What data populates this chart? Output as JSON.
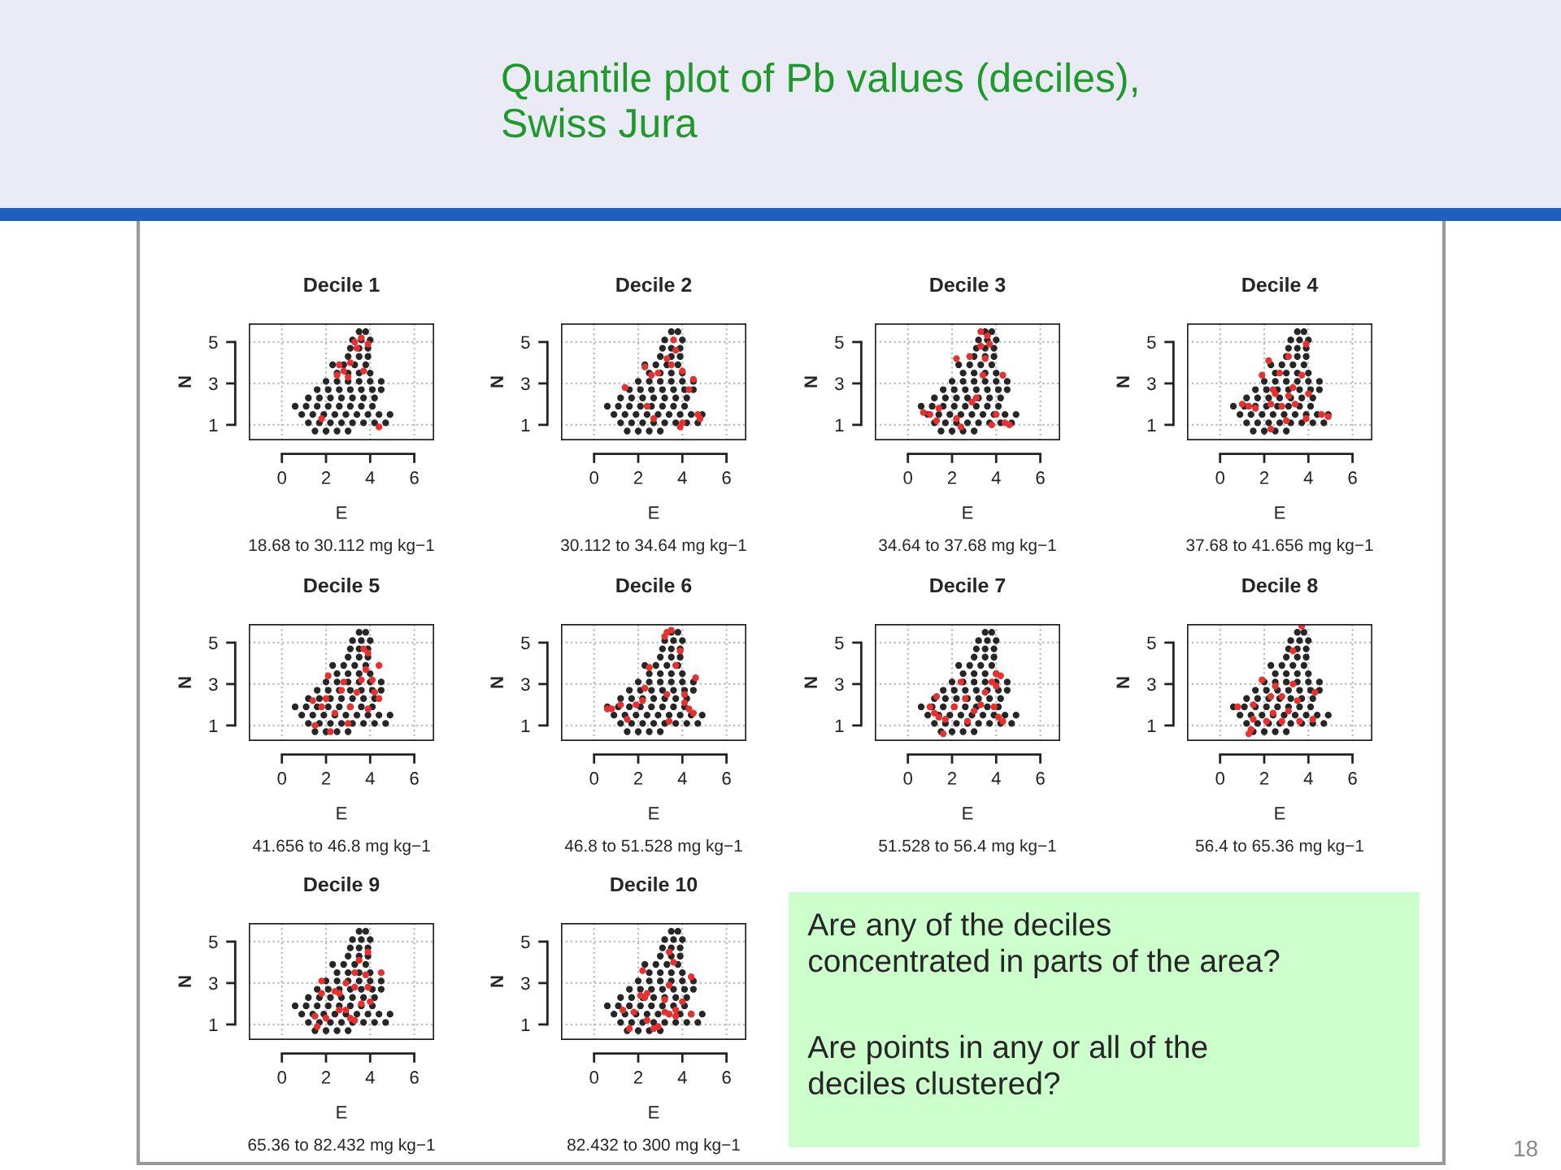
{
  "chart_data": [
    {
      "type": "other",
      "title": "Quantile plot of Pb values (deciles),\nSwiss Jura",
      "annotations": [
        "18"
      ]
    },
    {
      "type": "scatter",
      "title": "Decile 1",
      "xlabel": "E",
      "ylabel": "N",
      "annotations": [
        "18.68 to 30.112 mg kg−1"
      ],
      "xlim": [
        -1.5,
        6.9
      ],
      "ylim": [
        0.25,
        5.9
      ],
      "xticks": [
        0,
        2,
        4,
        6
      ],
      "yticks": [
        1,
        3,
        5
      ],
      "grid": true,
      "marker": "circle",
      "series": [
        {
          "color": "#262626",
          "x": [
            1.5,
            2.0,
            2.5,
            3.0,
            1.2,
            1.7,
            2.2,
            2.7,
            3.2,
            3.7,
            4.2,
            4.7,
            0.9,
            1.4,
            1.9,
            2.4,
            2.9,
            3.4,
            3.9,
            4.4,
            4.9,
            0.6,
            1.1,
            1.6,
            2.1,
            2.6,
            3.1,
            3.6,
            4.1,
            1.2,
            1.7,
            2.2,
            2.7,
            3.2,
            3.7,
            4.2,
            1.6,
            2.1,
            2.6,
            3.1,
            3.6,
            4.1,
            4.5,
            2.0,
            2.5,
            3.0,
            3.5,
            4.0,
            4.5,
            2.5,
            3.0,
            3.5,
            4.0,
            2.3,
            2.8,
            3.3,
            3.8,
            3.0,
            3.5,
            3.9,
            3.1,
            3.5,
            3.9,
            3.2,
            3.6,
            4.0,
            3.5,
            3.8
          ],
          "values": [
            0.7,
            0.7,
            0.7,
            0.7,
            1.1,
            1.1,
            1.1,
            1.1,
            1.1,
            1.1,
            1.1,
            1.1,
            1.5,
            1.5,
            1.5,
            1.5,
            1.5,
            1.5,
            1.5,
            1.5,
            1.5,
            1.9,
            1.9,
            1.9,
            1.9,
            1.9,
            1.9,
            1.9,
            1.9,
            2.3,
            2.3,
            2.3,
            2.3,
            2.3,
            2.3,
            2.3,
            2.7,
            2.7,
            2.7,
            2.7,
            2.7,
            2.7,
            2.7,
            3.1,
            3.1,
            3.1,
            3.1,
            3.1,
            3.1,
            3.5,
            3.5,
            3.5,
            3.5,
            3.9,
            3.9,
            3.9,
            3.9,
            4.3,
            4.3,
            4.3,
            4.7,
            4.7,
            4.7,
            5.1,
            5.1,
            5.1,
            5.5,
            5.5
          ]
        },
        {
          "color": "#e8312f",
          "x": [
            3.3,
            3.6,
            3.9,
            3.4,
            2.6,
            2.8,
            3.0,
            2.5,
            3.1,
            3.7,
            4.4,
            1.8
          ],
          "values": [
            5.0,
            5.2,
            4.9,
            4.7,
            3.9,
            3.6,
            3.3,
            3.4,
            4.0,
            3.6,
            0.9,
            1.3
          ]
        }
      ]
    },
    {
      "type": "scatter",
      "title": "Decile 2",
      "xlabel": "E",
      "ylabel": "N",
      "annotations": [
        "30.112 to 34.64 mg kg−1"
      ],
      "xlim": [
        -1.5,
        6.9
      ],
      "ylim": [
        0.25,
        5.9
      ],
      "xticks": [
        0,
        2,
        4,
        6
      ],
      "yticks": [
        1,
        3,
        5
      ],
      "grid": true,
      "marker": "circle",
      "series": [
        {
          "color": "#262626",
          "x": [
            1.5,
            2.0,
            2.5,
            3.0,
            1.2,
            1.7,
            2.2,
            2.7,
            3.2,
            3.7,
            4.2,
            4.7,
            0.9,
            1.4,
            1.9,
            2.4,
            2.9,
            3.4,
            3.9,
            4.4,
            4.9,
            0.6,
            1.1,
            1.6,
            2.1,
            2.6,
            3.1,
            3.6,
            4.1,
            1.2,
            1.7,
            2.2,
            2.7,
            3.2,
            3.7,
            4.2,
            1.6,
            2.1,
            2.6,
            3.1,
            3.6,
            4.1,
            4.5,
            2.0,
            2.5,
            3.0,
            3.5,
            4.0,
            4.5,
            2.5,
            3.0,
            3.5,
            4.0,
            2.3,
            2.8,
            3.3,
            3.8,
            3.0,
            3.5,
            3.9,
            3.1,
            3.5,
            3.9,
            3.2,
            3.6,
            4.0,
            3.5,
            3.8
          ],
          "values": [
            0.7,
            0.7,
            0.7,
            0.7,
            1.1,
            1.1,
            1.1,
            1.1,
            1.1,
            1.1,
            1.1,
            1.1,
            1.5,
            1.5,
            1.5,
            1.5,
            1.5,
            1.5,
            1.5,
            1.5,
            1.5,
            1.9,
            1.9,
            1.9,
            1.9,
            1.9,
            1.9,
            1.9,
            1.9,
            2.3,
            2.3,
            2.3,
            2.3,
            2.3,
            2.3,
            2.3,
            2.7,
            2.7,
            2.7,
            2.7,
            2.7,
            2.7,
            2.7,
            3.1,
            3.1,
            3.1,
            3.1,
            3.1,
            3.1,
            3.5,
            3.5,
            3.5,
            3.5,
            3.9,
            3.9,
            3.9,
            3.9,
            4.3,
            4.3,
            4.3,
            4.7,
            4.7,
            4.7,
            5.1,
            null,
            5.1,
            5.5,
            5.5
          ]
        },
        {
          "color": "#e8312f",
          "x": [
            3.6,
            3.7,
            3.3,
            2.3,
            2.6,
            2.9,
            3.5,
            4.0,
            4.5,
            1.4,
            4.3,
            2.4,
            4.0,
            3.9,
            4.7,
            4.8,
            2.7
          ],
          "values": [
            5.1,
            4.6,
            4.2,
            3.8,
            3.4,
            3.5,
            3.9,
            3.6,
            3.2,
            2.8,
            2.7,
            1.9,
            1.1,
            0.9,
            1.5,
            1.3,
            1.3
          ]
        }
      ]
    },
    {
      "type": "scatter",
      "title": "Decile 3",
      "xlabel": "E",
      "ylabel": "N",
      "annotations": [
        "34.64 to 37.68 mg kg−1"
      ],
      "xlim": [
        -1.5,
        6.9
      ],
      "ylim": [
        0.25,
        5.9
      ],
      "xticks": [
        0,
        2,
        4,
        6
      ],
      "yticks": [
        1,
        3,
        5
      ],
      "grid": true,
      "marker": "circle",
      "series": [
        {
          "color": "#262626",
          "x": [
            1.5,
            2.0,
            2.5,
            3.0,
            1.2,
            1.7,
            2.2,
            2.7,
            3.2,
            3.7,
            4.2,
            4.7,
            0.9,
            1.4,
            1.9,
            2.4,
            2.9,
            3.4,
            3.9,
            4.4,
            4.9,
            0.6,
            1.1,
            1.6,
            2.1,
            2.6,
            3.1,
            3.6,
            4.1,
            1.2,
            1.7,
            2.2,
            2.7,
            3.2,
            3.7,
            4.2,
            1.6,
            2.1,
            2.6,
            3.1,
            3.6,
            4.1,
            4.5,
            2.0,
            2.5,
            3.0,
            3.5,
            4.0,
            4.5,
            2.5,
            3.0,
            3.5,
            4.0,
            2.3,
            2.8,
            3.3,
            3.8,
            3.0,
            3.5,
            3.9,
            3.1,
            3.5,
            3.9,
            3.2,
            3.6,
            4.0,
            3.5,
            3.8
          ],
          "values": [
            0.7,
            0.7,
            0.7,
            0.7,
            1.1,
            1.1,
            1.1,
            1.1,
            1.1,
            1.1,
            1.1,
            1.1,
            1.5,
            1.5,
            1.5,
            1.5,
            1.5,
            1.5,
            1.5,
            1.5,
            1.5,
            1.9,
            1.9,
            1.9,
            1.9,
            1.9,
            1.9,
            1.9,
            1.9,
            2.3,
            2.3,
            2.3,
            2.3,
            2.3,
            2.3,
            2.3,
            2.7,
            2.7,
            2.7,
            2.7,
            2.7,
            2.7,
            2.7,
            3.1,
            3.1,
            3.1,
            3.1,
            3.1,
            3.1,
            3.5,
            3.5,
            3.5,
            3.5,
            3.9,
            3.9,
            3.9,
            3.9,
            4.3,
            4.3,
            4.3,
            4.7,
            4.7,
            4.7,
            5.1,
            5.1,
            5.1,
            5.5,
            5.5
          ]
        },
        {
          "color": "#e8312f",
          "x": [
            3.3,
            3.6,
            3.7,
            3.3,
            3.5,
            2.2,
            2.8,
            3.4,
            4.3,
            3.1,
            2.9,
            0.7,
            1.0,
            1.4,
            1.3,
            2.2,
            2.4,
            3.8,
            4.4,
            4.6,
            4.0
          ],
          "values": [
            5.5,
            5.3,
            4.9,
            4.8,
            4.2,
            4.2,
            4.3,
            3.4,
            3.4,
            2.3,
            2.1,
            1.6,
            1.5,
            1.8,
            1.2,
            1.3,
            0.9,
            1.0,
            1.1,
            1.0,
            1.5
          ]
        }
      ]
    },
    {
      "type": "scatter",
      "title": "Decile 4",
      "xlabel": "E",
      "ylabel": "N",
      "annotations": [
        "37.68 to 41.656 mg kg−1"
      ],
      "xlim": [
        -1.5,
        6.9
      ],
      "ylim": [
        0.25,
        5.9
      ],
      "xticks": [
        0,
        2,
        4,
        6
      ],
      "yticks": [
        1,
        3,
        5
      ],
      "grid": true,
      "marker": "circle",
      "series": [
        {
          "color": "#262626",
          "x": [
            1.5,
            2.0,
            2.5,
            3.0,
            1.2,
            1.7,
            2.2,
            2.7,
            3.2,
            3.7,
            4.2,
            4.7,
            0.9,
            1.4,
            1.9,
            2.4,
            2.9,
            3.4,
            3.9,
            4.4,
            4.9,
            0.6,
            1.1,
            1.6,
            2.1,
            2.6,
            3.1,
            3.6,
            4.1,
            1.2,
            1.7,
            2.2,
            2.7,
            3.2,
            3.7,
            4.2,
            1.6,
            2.1,
            2.6,
            3.1,
            3.6,
            4.1,
            4.5,
            2.0,
            2.5,
            3.0,
            3.5,
            4.0,
            4.5,
            2.5,
            3.0,
            3.5,
            4.0,
            2.3,
            2.8,
            3.3,
            3.8,
            3.0,
            3.5,
            3.9,
            3.1,
            3.5,
            3.9,
            3.2,
            3.6,
            4.0,
            3.5,
            3.8
          ],
          "values": [
            0.7,
            0.7,
            0.7,
            0.7,
            1.1,
            1.1,
            1.1,
            1.1,
            1.1,
            1.1,
            1.1,
            1.1,
            1.5,
            1.5,
            1.5,
            1.5,
            1.5,
            1.5,
            1.5,
            1.5,
            1.5,
            1.9,
            1.9,
            1.9,
            1.9,
            1.9,
            1.9,
            1.9,
            1.9,
            2.3,
            2.3,
            2.3,
            2.3,
            2.3,
            2.3,
            2.3,
            2.7,
            2.7,
            2.7,
            2.7,
            2.7,
            2.7,
            2.7,
            3.1,
            3.1,
            3.1,
            3.1,
            3.1,
            3.1,
            3.5,
            3.5,
            3.5,
            3.5,
            3.9,
            3.9,
            3.9,
            3.9,
            4.3,
            4.3,
            4.3,
            4.7,
            4.7,
            4.7,
            5.1,
            5.1,
            5.1,
            5.5,
            5.5
          ]
        },
        {
          "color": "#e8312f",
          "x": [
            3.1,
            3.9,
            2.2,
            1.9,
            2.7,
            3.7,
            3.3,
            2.4,
            2.5,
            3.1,
            2.3,
            1.0,
            1.3,
            1.6,
            2.8,
            3.4,
            4.0,
            4.6,
            4.9,
            3.0,
            3.9,
            2.3
          ],
          "values": [
            4.3,
            4.9,
            4.1,
            3.4,
            3.5,
            3.4,
            2.8,
            2.7,
            2.5,
            2.4,
            2.0,
            2.0,
            1.9,
            1.8,
            1.9,
            2.0,
            2.5,
            1.5,
            1.4,
            1.2,
            1.3,
            0.8
          ]
        }
      ]
    },
    {
      "type": "scatter",
      "title": "Decile 5",
      "xlabel": "E",
      "ylabel": "N",
      "annotations": [
        "41.656 to 46.8 mg kg−1"
      ],
      "xlim": [
        -1.5,
        6.9
      ],
      "ylim": [
        0.25,
        5.9
      ],
      "xticks": [
        0,
        2,
        4,
        6
      ],
      "yticks": [
        1,
        3,
        5
      ],
      "grid": true,
      "marker": "circle",
      "series": [
        {
          "color": "#262626",
          "x": [
            1.5,
            2.0,
            2.5,
            3.0,
            1.2,
            1.7,
            2.2,
            2.7,
            3.2,
            3.7,
            4.2,
            4.7,
            0.9,
            1.4,
            1.9,
            2.4,
            2.9,
            3.4,
            3.9,
            4.4,
            4.9,
            0.6,
            1.1,
            1.6,
            2.1,
            2.6,
            3.1,
            3.6,
            4.1,
            1.2,
            1.7,
            2.2,
            2.7,
            3.2,
            3.7,
            4.2,
            1.6,
            2.1,
            2.6,
            3.1,
            3.6,
            4.1,
            4.5,
            2.0,
            2.5,
            3.0,
            3.5,
            4.0,
            4.5,
            2.5,
            3.0,
            3.5,
            4.0,
            2.3,
            2.8,
            3.3,
            3.8,
            3.0,
            3.5,
            3.9,
            3.1,
            3.5,
            3.9,
            3.2,
            3.6,
            4.0,
            3.5,
            3.8
          ],
          "values": [
            0.7,
            0.7,
            0.7,
            0.7,
            1.1,
            1.1,
            1.1,
            1.1,
            1.1,
            1.1,
            1.1,
            1.1,
            1.5,
            1.5,
            1.5,
            1.5,
            1.5,
            1.5,
            1.5,
            1.5,
            1.5,
            1.9,
            1.9,
            1.9,
            1.9,
            1.9,
            1.9,
            1.9,
            1.9,
            2.3,
            2.3,
            2.3,
            2.3,
            2.3,
            2.3,
            2.3,
            2.7,
            2.7,
            2.7,
            2.7,
            2.7,
            2.7,
            2.7,
            3.1,
            3.1,
            3.1,
            3.1,
            3.1,
            3.1,
            3.5,
            3.5,
            3.5,
            3.5,
            3.9,
            3.9,
            3.9,
            3.9,
            4.3,
            4.3,
            4.3,
            4.7,
            4.7,
            4.7,
            5.1,
            5.1,
            5.1,
            5.5,
            5.5
          ]
        },
        {
          "color": "#e8312f",
          "x": [
            3.7,
            3.9,
            4.4,
            3.8,
            2.1,
            2.8,
            3.6,
            4.1,
            1.4,
            2.0,
            2.7,
            3.4,
            4.2,
            4.4,
            1.8,
            3.1,
            3.9,
            2.4,
            1.5,
            3.0,
            2.2
          ],
          "values": [
            4.7,
            4.5,
            3.9,
            3.7,
            3.4,
            3.1,
            3.2,
            3.2,
            2.2,
            2.3,
            2.7,
            2.6,
            2.6,
            2.3,
            1.9,
            1.9,
            1.8,
            1.6,
            1.0,
            1.1,
            0.7
          ]
        }
      ]
    },
    {
      "type": "scatter",
      "title": "Decile 6",
      "xlabel": "E",
      "ylabel": "N",
      "annotations": [
        "46.8 to 51.528 mg kg−1"
      ],
      "xlim": [
        -1.5,
        6.9
      ],
      "ylim": [
        0.25,
        5.9
      ],
      "xticks": [
        0,
        2,
        4,
        6
      ],
      "yticks": [
        1,
        3,
        5
      ],
      "grid": true,
      "marker": "circle",
      "series": [
        {
          "color": "#262626",
          "x": [
            1.5,
            2.0,
            2.5,
            3.0,
            1.2,
            1.7,
            2.2,
            2.7,
            3.2,
            3.7,
            4.2,
            4.7,
            0.9,
            1.4,
            1.9,
            2.4,
            2.9,
            3.4,
            3.9,
            4.4,
            4.9,
            0.6,
            1.1,
            1.6,
            2.1,
            2.6,
            3.1,
            3.6,
            4.1,
            1.2,
            1.7,
            2.2,
            2.7,
            3.2,
            3.7,
            4.2,
            1.6,
            2.1,
            2.6,
            3.1,
            3.6,
            4.1,
            4.5,
            2.0,
            2.5,
            3.0,
            3.5,
            4.0,
            4.5,
            2.5,
            3.0,
            3.5,
            4.0,
            2.3,
            2.8,
            3.3,
            3.8,
            3.0,
            3.5,
            3.9,
            3.1,
            3.5,
            3.9,
            3.2,
            3.6,
            4.0,
            3.5,
            3.8
          ],
          "values": [
            0.7,
            0.7,
            0.7,
            0.7,
            1.1,
            1.1,
            1.1,
            1.1,
            1.1,
            1.1,
            1.1,
            1.1,
            1.5,
            1.5,
            1.5,
            1.5,
            1.5,
            1.5,
            1.5,
            1.5,
            1.5,
            1.9,
            1.9,
            1.9,
            1.9,
            1.9,
            1.9,
            1.9,
            1.9,
            2.3,
            2.3,
            2.3,
            2.3,
            2.3,
            2.3,
            2.3,
            2.7,
            2.7,
            2.7,
            2.7,
            2.7,
            2.7,
            2.7,
            3.1,
            3.1,
            3.1,
            3.1,
            3.1,
            3.1,
            3.5,
            3.5,
            3.5,
            3.5,
            3.9,
            3.9,
            3.9,
            3.9,
            4.3,
            4.3,
            4.3,
            4.7,
            4.7,
            4.7,
            5.1,
            5.1,
            5.1,
            5.5,
            5.5
          ]
        },
        {
          "color": "#e8312f",
          "x": [
            3.3,
            3.5,
            3.2,
            3.9,
            2.5,
            3.7,
            4.6,
            2.3,
            3.3,
            4.1,
            0.6,
            0.8,
            1.2,
            1.9,
            2.2,
            4.1,
            4.3,
            4.5,
            3.4,
            1.5
          ],
          "values": [
            5.5,
            5.6,
            5.3,
            4.6,
            3.8,
            3.9,
            3.3,
            2.8,
            2.5,
            2.5,
            1.8,
            1.8,
            2.0,
            2.0,
            2.2,
            2.1,
            1.8,
            1.6,
            1.2,
            1.3
          ]
        }
      ]
    },
    {
      "type": "scatter",
      "title": "Decile 7",
      "xlabel": "E",
      "ylabel": "N",
      "annotations": [
        "51.528 to 56.4 mg kg−1"
      ],
      "xlim": [
        -1.5,
        6.9
      ],
      "ylim": [
        0.25,
        5.9
      ],
      "xticks": [
        0,
        2,
        4,
        6
      ],
      "yticks": [
        1,
        3,
        5
      ],
      "grid": true,
      "marker": "circle",
      "series": [
        {
          "color": "#262626",
          "x": [
            1.5,
            2.0,
            2.5,
            3.0,
            1.2,
            1.7,
            2.2,
            2.7,
            3.2,
            3.7,
            4.2,
            4.7,
            0.9,
            1.4,
            1.9,
            2.4,
            2.9,
            3.4,
            3.9,
            4.4,
            4.9,
            0.6,
            1.1,
            1.6,
            2.1,
            2.6,
            3.1,
            3.6,
            4.1,
            1.2,
            1.7,
            2.2,
            2.7,
            3.2,
            3.7,
            4.2,
            1.6,
            2.1,
            2.6,
            3.1,
            3.6,
            4.1,
            4.5,
            2.0,
            2.5,
            3.0,
            3.5,
            4.0,
            4.5,
            2.5,
            3.0,
            3.5,
            4.0,
            2.3,
            2.8,
            3.3,
            3.8,
            3.0,
            3.5,
            3.9,
            3.1,
            3.5,
            3.9,
            3.2,
            3.6,
            4.0,
            3.5,
            3.8
          ],
          "values": [
            0.7,
            0.7,
            0.7,
            0.7,
            1.1,
            1.1,
            1.1,
            1.1,
            1.1,
            1.1,
            1.1,
            1.1,
            1.5,
            1.5,
            1.5,
            1.5,
            1.5,
            1.5,
            1.5,
            1.5,
            1.5,
            1.9,
            1.9,
            1.9,
            1.9,
            1.9,
            1.9,
            1.9,
            1.9,
            2.3,
            2.3,
            2.3,
            2.3,
            2.3,
            2.3,
            2.3,
            2.7,
            2.7,
            2.7,
            2.7,
            2.7,
            2.7,
            2.7,
            3.1,
            3.1,
            3.1,
            3.1,
            3.1,
            3.1,
            3.5,
            3.5,
            3.5,
            3.5,
            3.9,
            3.9,
            3.9,
            3.9,
            4.3,
            4.3,
            4.3,
            4.7,
            4.7,
            4.7,
            5.1,
            5.1,
            5.1,
            5.5,
            5.5
          ]
        },
        {
          "color": "#e8312f",
          "x": [
            4.0,
            4.2,
            3.8,
            2.4,
            3.5,
            4.0,
            1.3,
            2.1,
            2.6,
            1.0,
            1.2,
            1.4,
            1.7,
            3.0,
            2.7,
            3.9,
            4.1,
            4.3,
            1.6,
            3.3
          ],
          "values": [
            3.5,
            3.4,
            3.1,
            3.1,
            2.6,
            2.9,
            2.4,
            1.9,
            2.3,
            1.9,
            1.6,
            1.4,
            1.3,
            1.7,
            1.2,
            1.9,
            1.4,
            1.2,
            0.6,
            2.0
          ]
        }
      ]
    },
    {
      "type": "scatter",
      "title": "Decile 8",
      "xlabel": "E",
      "ylabel": "N",
      "annotations": [
        "56.4 to 65.36 mg kg−1"
      ],
      "xlim": [
        -1.5,
        6.9
      ],
      "ylim": [
        0.25,
        5.9
      ],
      "xticks": [
        0,
        2,
        4,
        6
      ],
      "yticks": [
        1,
        3,
        5
      ],
      "grid": true,
      "marker": "circle",
      "series": [
        {
          "color": "#262626",
          "x": [
            1.5,
            2.0,
            2.5,
            3.0,
            1.2,
            1.7,
            2.2,
            2.7,
            3.2,
            3.7,
            4.2,
            4.7,
            0.9,
            1.4,
            1.9,
            2.4,
            2.9,
            3.4,
            3.9,
            4.4,
            4.9,
            0.6,
            1.1,
            1.6,
            2.1,
            2.6,
            3.1,
            3.6,
            4.1,
            1.2,
            1.7,
            2.2,
            2.7,
            3.2,
            3.7,
            4.2,
            1.6,
            2.1,
            2.6,
            3.1,
            3.6,
            4.1,
            4.5,
            2.0,
            2.5,
            3.0,
            3.5,
            4.0,
            4.5,
            2.5,
            3.0,
            3.5,
            4.0,
            2.3,
            2.8,
            3.3,
            3.8,
            3.0,
            3.5,
            3.9,
            3.1,
            3.5,
            3.9,
            3.2,
            3.6,
            4.0,
            3.5,
            3.8
          ],
          "values": [
            0.7,
            0.7,
            0.7,
            0.7,
            1.1,
            1.1,
            1.1,
            1.1,
            1.1,
            1.1,
            1.1,
            1.1,
            1.5,
            1.5,
            1.5,
            1.5,
            1.5,
            1.5,
            1.5,
            1.5,
            1.5,
            1.9,
            1.9,
            1.9,
            1.9,
            1.9,
            1.9,
            1.9,
            1.9,
            2.3,
            2.3,
            2.3,
            2.3,
            2.3,
            2.3,
            2.3,
            2.7,
            2.7,
            2.7,
            2.7,
            2.7,
            2.7,
            2.7,
            3.1,
            3.1,
            3.1,
            3.1,
            3.1,
            3.1,
            3.5,
            3.5,
            3.5,
            3.5,
            3.9,
            3.9,
            3.9,
            3.9,
            4.3,
            4.3,
            4.3,
            4.7,
            4.7,
            4.7,
            5.1,
            5.1,
            5.1,
            5.5,
            5.5
          ]
        },
        {
          "color": "#e8312f",
          "x": [
            3.7,
            3.3,
            1.9,
            2.5,
            3.3,
            4.3,
            2.3,
            2.8,
            3.5,
            0.8,
            1.5,
            2.4,
            3.1,
            1.5,
            2.1,
            2.8,
            3.6,
            4.2,
            1.4,
            1.3
          ],
          "values": [
            5.8,
            4.6,
            3.2,
            2.9,
            3.0,
            2.6,
            2.4,
            2.4,
            2.2,
            1.9,
            2.0,
            1.6,
            1.7,
            1.3,
            1.2,
            1.2,
            1.2,
            1.3,
            0.8,
            0.6
          ]
        }
      ]
    },
    {
      "type": "scatter",
      "title": "Decile 9",
      "xlabel": "E",
      "ylabel": "N",
      "annotations": [
        "65.36 to 82.432 mg kg−1"
      ],
      "xlim": [
        -1.5,
        6.9
      ],
      "ylim": [
        0.25,
        5.9
      ],
      "xticks": [
        0,
        2,
        4,
        6
      ],
      "yticks": [
        1,
        3,
        5
      ],
      "grid": true,
      "marker": "circle",
      "series": [
        {
          "color": "#262626",
          "x": [
            1.5,
            2.0,
            2.5,
            3.0,
            1.2,
            1.7,
            2.2,
            2.7,
            3.2,
            3.7,
            4.2,
            4.7,
            0.9,
            1.4,
            1.9,
            2.4,
            2.9,
            3.4,
            3.9,
            4.4,
            4.9,
            0.6,
            1.1,
            1.6,
            2.1,
            2.6,
            3.1,
            3.6,
            4.1,
            1.2,
            1.7,
            2.2,
            2.7,
            3.2,
            3.7,
            4.2,
            1.6,
            2.1,
            2.6,
            3.1,
            3.6,
            4.1,
            4.5,
            2.0,
            2.5,
            3.0,
            3.5,
            4.0,
            4.5,
            2.5,
            3.0,
            3.5,
            4.0,
            2.3,
            2.8,
            3.3,
            3.8,
            3.0,
            3.5,
            3.9,
            3.1,
            3.5,
            3.9,
            3.2,
            3.6,
            4.0,
            3.5,
            3.8
          ],
          "values": [
            0.7,
            0.7,
            0.7,
            0.7,
            1.1,
            1.1,
            1.1,
            1.1,
            1.1,
            1.1,
            1.1,
            1.1,
            1.5,
            1.5,
            1.5,
            1.5,
            1.5,
            1.5,
            1.5,
            1.5,
            1.5,
            1.9,
            1.9,
            1.9,
            1.9,
            1.9,
            1.9,
            1.9,
            1.9,
            2.3,
            2.3,
            2.3,
            2.3,
            2.3,
            2.3,
            2.3,
            2.7,
            2.7,
            2.7,
            2.7,
            2.7,
            2.7,
            2.7,
            3.1,
            3.1,
            3.1,
            3.1,
            3.1,
            3.1,
            3.5,
            3.5,
            3.5,
            3.5,
            3.9,
            3.9,
            3.9,
            3.9,
            4.3,
            4.3,
            4.3,
            4.7,
            4.7,
            4.7,
            5.1,
            5.1,
            5.1,
            5.5,
            5.5
          ]
        },
        {
          "color": "#e8312f",
          "x": [
            3.9,
            3.5,
            4.5,
            3.3,
            3.8,
            2.9,
            3.9,
            1.8,
            1.8,
            2.4,
            2.6,
            3.3,
            2.6,
            2.9,
            3.6,
            4.0,
            1.5,
            3.1,
            3.3,
            2.0,
            1.6
          ],
          "values": [
            4.5,
            4.1,
            3.5,
            3.5,
            3.4,
            3.0,
            2.8,
            3.1,
            2.5,
            2.6,
            2.5,
            2.8,
            1.7,
            1.7,
            2.0,
            2.1,
            1.4,
            1.3,
            1.2,
            1.3,
            0.9
          ]
        }
      ]
    },
    {
      "type": "scatter",
      "title": "Decile 10",
      "xlabel": "E",
      "ylabel": "N",
      "annotations": [
        "82.432 to 300 mg kg−1"
      ],
      "xlim": [
        -1.5,
        6.9
      ],
      "ylim": [
        0.25,
        5.9
      ],
      "xticks": [
        0,
        2,
        4,
        6
      ],
      "yticks": [
        1,
        3,
        5
      ],
      "grid": true,
      "marker": "circle",
      "series": [
        {
          "color": "#262626",
          "x": [
            1.5,
            2.0,
            2.5,
            3.0,
            1.2,
            1.7,
            2.2,
            2.7,
            3.2,
            3.7,
            4.2,
            4.7,
            0.9,
            1.4,
            1.9,
            2.4,
            2.9,
            3.4,
            3.9,
            4.4,
            4.9,
            0.6,
            1.1,
            1.6,
            2.1,
            2.6,
            3.1,
            3.6,
            4.1,
            1.2,
            1.7,
            2.2,
            2.7,
            3.2,
            3.7,
            4.2,
            1.6,
            2.1,
            2.6,
            3.1,
            3.6,
            4.1,
            4.5,
            2.0,
            2.5,
            3.0,
            3.5,
            4.0,
            4.5,
            2.5,
            3.0,
            3.5,
            4.0,
            2.3,
            2.8,
            3.3,
            3.8,
            3.0,
            3.5,
            3.9,
            3.1,
            3.5,
            3.9,
            3.2,
            3.6,
            4.0,
            3.5,
            3.8
          ],
          "values": [
            0.7,
            0.7,
            0.7,
            0.7,
            1.1,
            1.1,
            1.1,
            1.1,
            1.1,
            1.1,
            1.1,
            1.1,
            1.5,
            1.5,
            1.5,
            1.5,
            1.5,
            1.5,
            1.5,
            1.5,
            1.5,
            1.9,
            1.9,
            1.9,
            1.9,
            1.9,
            1.9,
            1.9,
            1.9,
            2.3,
            2.3,
            2.3,
            2.3,
            2.3,
            2.3,
            2.3,
            2.7,
            2.7,
            2.7,
            2.7,
            2.7,
            2.7,
            2.7,
            3.1,
            3.1,
            3.1,
            3.1,
            3.1,
            3.1,
            3.5,
            3.5,
            3.5,
            3.5,
            3.9,
            3.9,
            3.9,
            3.9,
            4.3,
            4.3,
            4.3,
            4.7,
            4.7,
            4.7,
            5.1,
            5.1,
            5.1,
            5.5,
            5.5
          ]
        },
        {
          "color": "#e8312f",
          "x": [
            3.4,
            3.6,
            2.2,
            4.4,
            3.4,
            2.1,
            2.3,
            2.4,
            3.2,
            4.0,
            1.3,
            1.8,
            3.2,
            3.4,
            3.7,
            2.4,
            1.6,
            2.7,
            2.9,
            3.7,
            4.4
          ],
          "values": [
            4.5,
            4.0,
            3.6,
            3.3,
            2.9,
            2.4,
            2.3,
            2.5,
            2.2,
            2.1,
            1.7,
            1.6,
            1.6,
            1.5,
            1.4,
            1.2,
            0.8,
            0.8,
            0.9,
            1.7,
            1.5
          ]
        }
      ]
    },
    {
      "type": "other",
      "annotations": [
        "Are any of the deciles\nconcentrated in parts of the area?",
        "Are points in any or all of the\ndeciles clustered?"
      ]
    }
  ]
}
